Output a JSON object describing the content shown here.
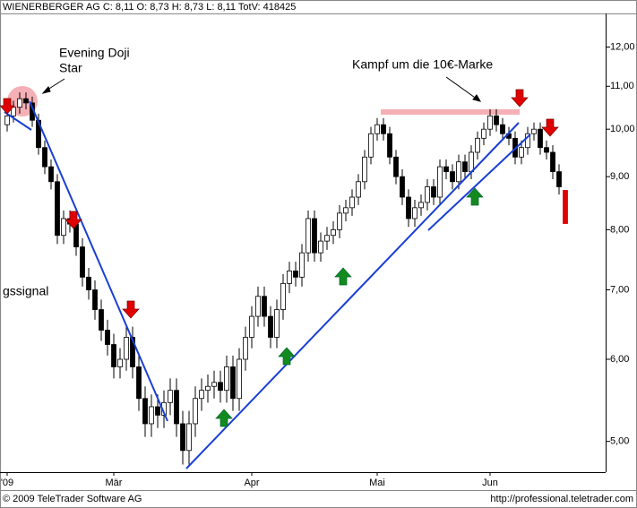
{
  "chart_data": {
    "type": "candlestick",
    "title": "WIENERBERGER AG C: 8,11 O: 8,73 H: 8,73 L: 8,11 TotV: 418425",
    "copyright": "© 2009 TeleTrader Software AG",
    "source": "http://professional.teletrader.com",
    "annotations": [
      "Evening Doji",
      "Star",
      "Kampf um die 10€-Marke",
      "gssignal"
    ],
    "log_scale": true,
    "up_color": "#ffffff",
    "down_color": "#000000",
    "last_color": "#e00000",
    "ylim": [
      4.67,
      12.93
    ],
    "yticks": [
      {
        "value": 5,
        "label": "5,00"
      },
      {
        "value": 6,
        "label": "6,00"
      },
      {
        "value": 7,
        "label": "7,00"
      },
      {
        "value": 8,
        "label": "8,00"
      },
      {
        "value": 9,
        "label": "9,00"
      },
      {
        "value": 10,
        "label": "10,00"
      },
      {
        "value": 11,
        "label": "11,00"
      },
      {
        "value": 12,
        "label": "12,00"
      }
    ],
    "categories": [
      "'09",
      null,
      null,
      null,
      null,
      null,
      null,
      null,
      null,
      null,
      null,
      null,
      null,
      null,
      null,
      null,
      null,
      "Mär",
      null,
      null,
      null,
      null,
      null,
      null,
      null,
      null,
      null,
      null,
      null,
      null,
      null,
      null,
      null,
      null,
      null,
      null,
      null,
      null,
      null,
      "Apr",
      null,
      null,
      null,
      null,
      null,
      null,
      null,
      null,
      null,
      null,
      null,
      null,
      null,
      null,
      null,
      null,
      null,
      null,
      null,
      "Mai",
      null,
      null,
      null,
      null,
      null,
      null,
      null,
      null,
      null,
      null,
      null,
      null,
      null,
      null,
      null,
      null,
      null,
      "Jun",
      null,
      null,
      null,
      null,
      null,
      null,
      null,
      null,
      null,
      null,
      null,
      null
    ],
    "open": [
      10.1,
      10.3,
      10.5,
      10.7,
      10.6,
      10.2,
      9.6,
      9.2,
      8.9,
      7.9,
      8.2,
      8.1,
      7.7,
      7.2,
      7.0,
      6.7,
      6.4,
      6.2,
      5.9,
      6.0,
      6.3,
      5.9,
      5.5,
      5.2,
      5.4,
      5.3,
      5.45,
      5.6,
      5.2,
      4.9,
      5.2,
      5.5,
      5.6,
      5.65,
      5.7,
      5.6,
      5.9,
      5.5,
      6.0,
      6.3,
      6.6,
      6.9,
      6.6,
      6.3,
      6.7,
      7.1,
      7.3,
      7.2,
      7.6,
      8.2,
      7.6,
      7.8,
      7.9,
      8.0,
      8.3,
      8.4,
      8.6,
      8.9,
      9.4,
      9.9,
      10.1,
      9.9,
      9.4,
      9.0,
      8.6,
      8.2,
      8.4,
      8.5,
      8.8,
      8.6,
      9.2,
      9.1,
      8.9,
      9.3,
      9.1,
      9.5,
      9.8,
      10.0,
      10.3,
      10.1,
      9.9,
      9.8,
      9.4,
      9.6,
      9.9,
      10.0,
      9.6,
      9.5,
      9.1,
      8.73
    ],
    "high": [
      10.45,
      10.65,
      10.85,
      10.85,
      10.75,
      10.35,
      9.75,
      9.35,
      9.05,
      8.35,
      8.35,
      8.25,
      7.85,
      7.35,
      7.15,
      6.85,
      6.55,
      6.35,
      6.15,
      6.45,
      6.45,
      6.05,
      5.65,
      5.55,
      5.55,
      5.6,
      5.75,
      5.75,
      5.35,
      5.35,
      5.65,
      5.75,
      5.8,
      5.85,
      5.85,
      6.05,
      6.05,
      6.15,
      6.45,
      6.75,
      7.05,
      7.05,
      6.75,
      6.85,
      7.25,
      7.45,
      7.45,
      7.75,
      8.35,
      8.35,
      7.95,
      8.05,
      8.15,
      8.45,
      8.55,
      8.75,
      9.05,
      9.55,
      10.05,
      10.25,
      10.25,
      10.05,
      9.55,
      9.15,
      8.75,
      8.55,
      8.65,
      8.95,
      8.95,
      9.35,
      9.35,
      9.25,
      9.45,
      9.45,
      9.65,
      9.95,
      10.15,
      10.45,
      10.45,
      10.25,
      10.05,
      9.95,
      9.75,
      10.05,
      10.15,
      10.15,
      9.75,
      9.65,
      9.25,
      8.73
    ],
    "low": [
      9.95,
      10.15,
      10.35,
      10.45,
      10.05,
      9.45,
      9.05,
      8.75,
      7.75,
      7.75,
      7.95,
      7.55,
      7.05,
      6.85,
      6.55,
      6.25,
      6.05,
      5.75,
      5.75,
      5.85,
      5.75,
      5.35,
      5.05,
      5.05,
      5.15,
      5.15,
      5.3,
      5.05,
      4.75,
      4.75,
      5.05,
      5.35,
      5.45,
      5.5,
      5.45,
      5.45,
      5.35,
      5.35,
      5.85,
      6.15,
      6.45,
      6.45,
      6.15,
      6.15,
      6.55,
      6.95,
      7.05,
      7.05,
      7.45,
      7.45,
      7.45,
      7.65,
      7.75,
      7.85,
      8.15,
      8.25,
      8.45,
      8.75,
      9.25,
      9.75,
      9.75,
      9.25,
      8.85,
      8.45,
      8.05,
      8.05,
      8.25,
      8.35,
      8.45,
      8.45,
      8.95,
      8.75,
      8.75,
      8.95,
      8.95,
      9.35,
      9.65,
      9.85,
      9.95,
      9.75,
      9.65,
      9.25,
      9.25,
      9.45,
      9.75,
      9.45,
      9.35,
      8.95,
      8.65,
      8.11
    ],
    "close": [
      10.3,
      10.5,
      10.7,
      10.6,
      10.2,
      9.6,
      9.2,
      8.9,
      7.9,
      8.2,
      8.1,
      7.7,
      7.2,
      7.0,
      6.7,
      6.4,
      6.2,
      5.9,
      6.0,
      6.3,
      5.9,
      5.5,
      5.2,
      5.4,
      5.3,
      5.45,
      5.6,
      5.2,
      4.9,
      5.2,
      5.5,
      5.6,
      5.65,
      5.7,
      5.6,
      5.9,
      5.5,
      6.0,
      6.3,
      6.6,
      6.9,
      6.6,
      6.3,
      6.7,
      7.1,
      7.3,
      7.2,
      7.6,
      8.2,
      7.6,
      7.8,
      7.9,
      8.0,
      8.3,
      8.4,
      8.6,
      8.9,
      9.4,
      9.9,
      10.1,
      9.9,
      9.4,
      9.0,
      8.6,
      8.2,
      8.4,
      8.5,
      8.8,
      8.6,
      9.2,
      9.1,
      8.9,
      9.3,
      9.1,
      9.5,
      9.8,
      10.0,
      10.3,
      10.1,
      9.9,
      9.8,
      9.4,
      9.6,
      9.9,
      10.0,
      9.6,
      9.5,
      9.1,
      8.8,
      8.11
    ]
  }
}
